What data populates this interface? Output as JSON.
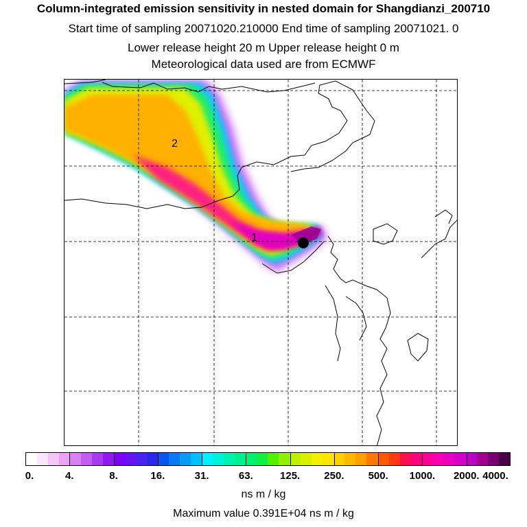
{
  "header": {
    "title": "Column-integrated emission sensitivity in nested domain for Shangdianzi_200710",
    "line_start_end": "Start time of sampling 20071020.210000     End time of sampling 20071021.     0",
    "line_release": "Lower release height   20 m          Upper release height    0 m",
    "line_met": "Meteorological data used are from ECMWF"
  },
  "map": {
    "labels": {
      "label_1": "1",
      "label_2": "2"
    },
    "station_marker": "Shangdianzi"
  },
  "colorbar": {
    "ticks": [
      "0.",
      "4.",
      "8.",
      "16.",
      "31.",
      "63.",
      "125.",
      "250.",
      "500.",
      "1000.",
      "2000.",
      "4000."
    ],
    "colors": [
      "#ffffff",
      "#fde6fd",
      "#f6c4f8",
      "#eda2f6",
      "#d781f3",
      "#c35cf2",
      "#a93af0",
      "#9119ef",
      "#8000ff",
      "#6a13f2",
      "#4a23f0",
      "#2929ee",
      "#0a57ee",
      "#0a7af0",
      "#0a9bf3",
      "#00bfff",
      "#00f0ff",
      "#00f0d8",
      "#00f0b0",
      "#00f090",
      "#00f070",
      "#10f040",
      "#50f000",
      "#90f000",
      "#bff000",
      "#d8f000",
      "#f0f000",
      "#ffe600",
      "#ffd000",
      "#ffb800",
      "#ffa000",
      "#ff7800",
      "#ff5a00",
      "#ff3a10",
      "#ff1050",
      "#ff0080",
      "#ff0098",
      "#f800b0",
      "#e800c0",
      "#d200c8",
      "#bc00c4",
      "#a40090",
      "#7a0070",
      "#4a0048"
    ]
  },
  "footer": {
    "unit": "ns m / kg",
    "max_value": "Maximum value  0.391E+04 ns m / kg"
  }
}
